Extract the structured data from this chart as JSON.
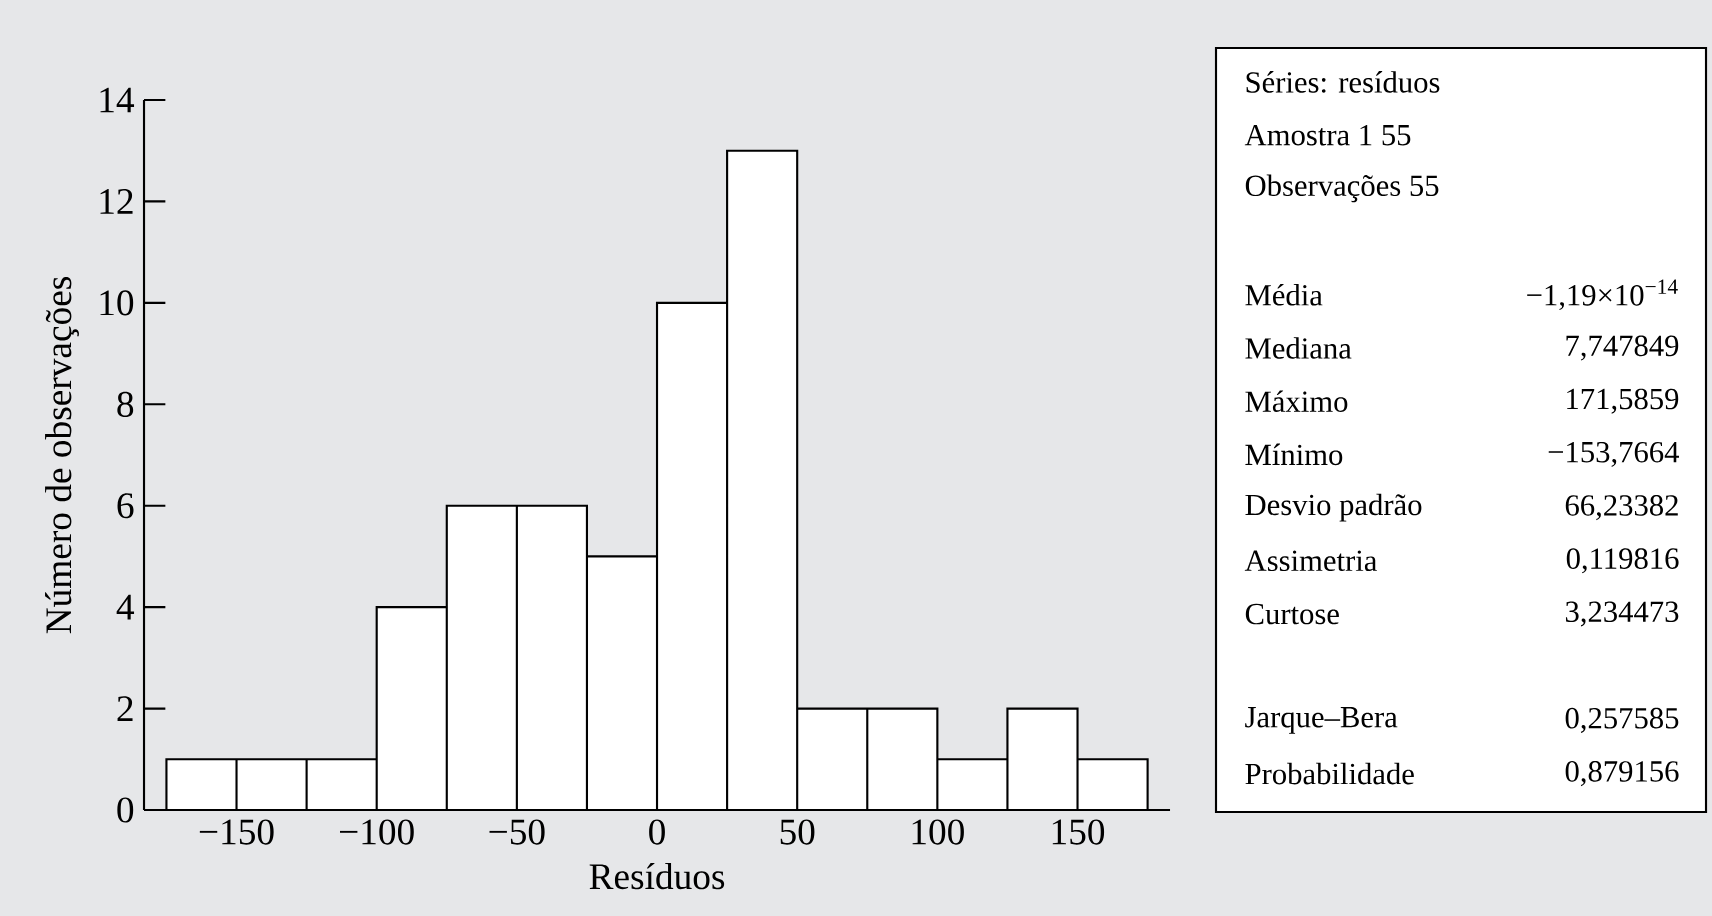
{
  "chart_data": [
    {
      "type": "histogram",
      "xlabel": "Resíduos",
      "ylabel": "Número de observações",
      "color": "#ffffff",
      "bins": [
        -175,
        -150,
        -125,
        -100,
        -75,
        -50,
        -25,
        0,
        25,
        50,
        75,
        100,
        125,
        150,
        175
      ],
      "values": [
        1,
        1,
        1,
        4,
        6,
        6,
        5,
        10,
        13,
        2,
        2,
        1,
        2,
        1
      ],
      "xlim": [
        -183,
        183
      ],
      "ylim": [
        0,
        14
      ],
      "xticks": [
        {
          "value": -150,
          "label": "−150"
        },
        {
          "value": -100,
          "label": "−100"
        },
        {
          "value": -50,
          "label": "−50"
        },
        0,
        50,
        100,
        150
      ],
      "yticks": [
        0,
        2,
        4,
        6,
        8,
        10,
        12,
        14
      ],
      "grid": false
    },
    {
      "type": "other",
      "annotations": [
        "Séries: resíduos",
        "Amostra 1 55",
        "Observações 55",
        "Média",
        "−1,19×10$^{−14}$",
        "Mediana",
        "7,747849",
        "Máximo",
        "171,5859",
        "Mínimo",
        "−153,7664",
        "Desvio padrão",
        "66,23382",
        "Assimetria",
        "0,119816",
        "Curtose",
        "3,234473",
        "Jarque–Bera",
        "0,257585",
        "Probabilidade",
        "0,879156"
      ]
    }
  ]
}
